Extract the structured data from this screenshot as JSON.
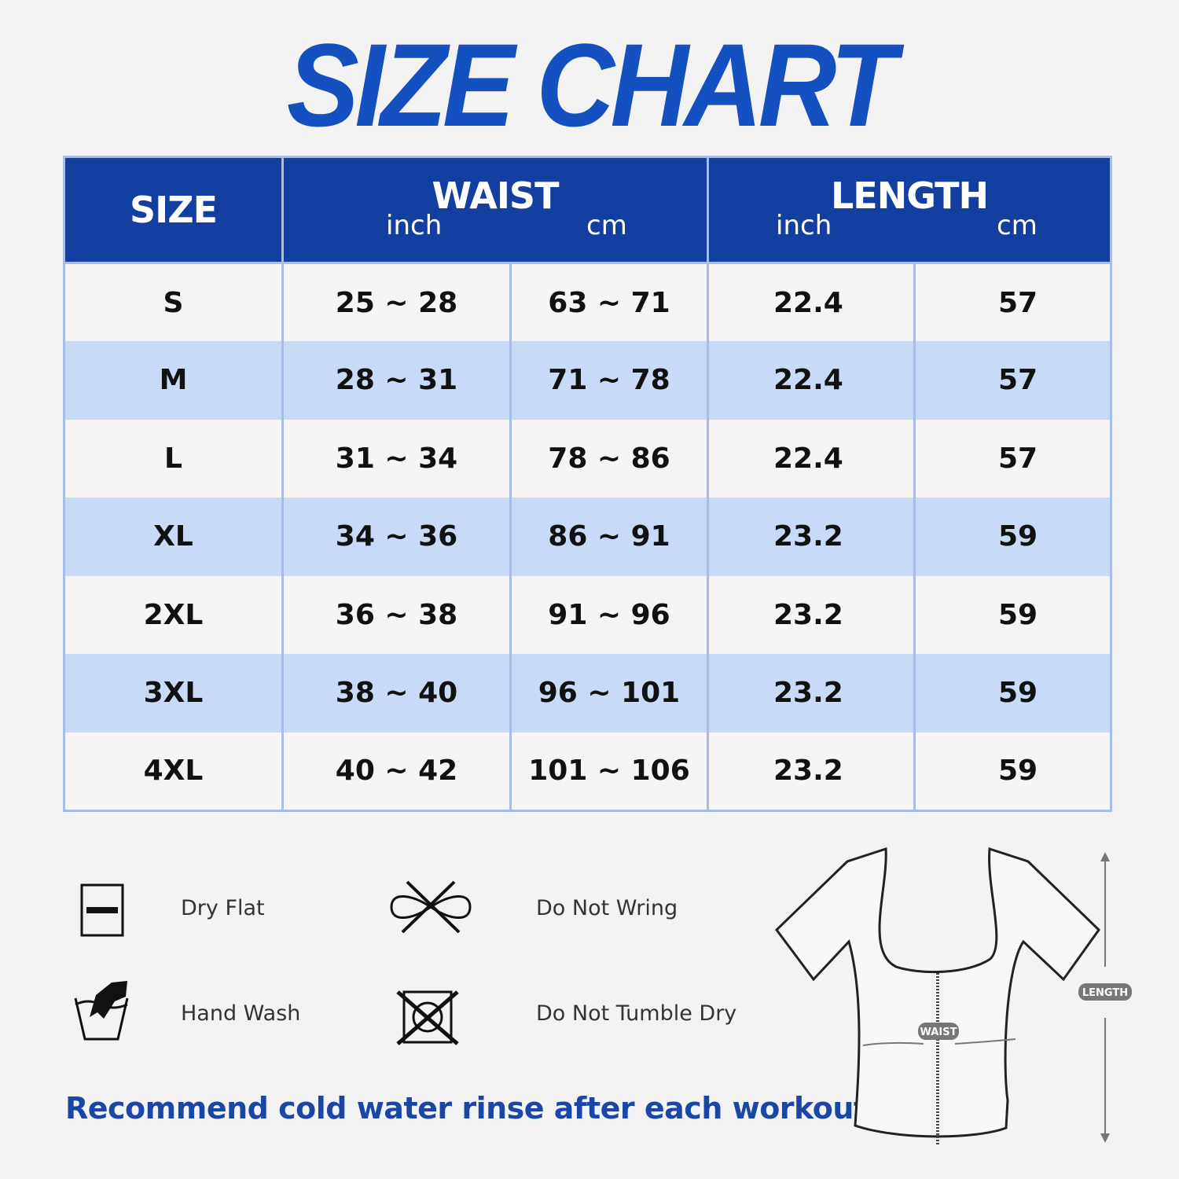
{
  "title": "SIZE CHART",
  "table": {
    "headers": {
      "size": "SIZE",
      "waist": "WAIST",
      "length": "LENGTH",
      "inch": "inch",
      "cm": "cm"
    },
    "rows": [
      {
        "size": "S",
        "waist_inch": "25 ~ 28",
        "waist_cm": "63 ~ 71",
        "length_inch": "22.4",
        "length_cm": "57"
      },
      {
        "size": "M",
        "waist_inch": "28 ~ 31",
        "waist_cm": "71 ~ 78",
        "length_inch": "22.4",
        "length_cm": "57"
      },
      {
        "size": "L",
        "waist_inch": "31 ~ 34",
        "waist_cm": "78 ~ 86",
        "length_inch": "22.4",
        "length_cm": "57"
      },
      {
        "size": "XL",
        "waist_inch": "34 ~ 36",
        "waist_cm": "86 ~ 91",
        "length_inch": "23.2",
        "length_cm": "59"
      },
      {
        "size": "2XL",
        "waist_inch": "36 ~ 38",
        "waist_cm": "91 ~ 96",
        "length_inch": "23.2",
        "length_cm": "59"
      },
      {
        "size": "3XL",
        "waist_inch": "38 ~ 40",
        "waist_cm": "96 ~ 101",
        "length_inch": "23.2",
        "length_cm": "59"
      },
      {
        "size": "4XL",
        "waist_inch": "40 ~ 42",
        "waist_cm": "101 ~ 106",
        "length_inch": "23.2",
        "length_cm": "59"
      }
    ]
  },
  "care": [
    {
      "icon": "dry-flat-icon",
      "label": "Dry Flat"
    },
    {
      "icon": "do-not-wring-icon",
      "label": "Do Not Wring"
    },
    {
      "icon": "hand-wash-icon",
      "label": "Hand Wash"
    },
    {
      "icon": "do-not-tumble-dry-icon",
      "label": "Do Not Tumble Dry"
    }
  ],
  "note": "Recommend cold water rinse after each workout.",
  "diagram": {
    "waist_label": "WAIST",
    "length_label": "LENGTH"
  },
  "colors": {
    "header": "#1340a0",
    "title": "#1450c0",
    "row_alt": "#c9daf6",
    "note": "#1a47a6"
  }
}
